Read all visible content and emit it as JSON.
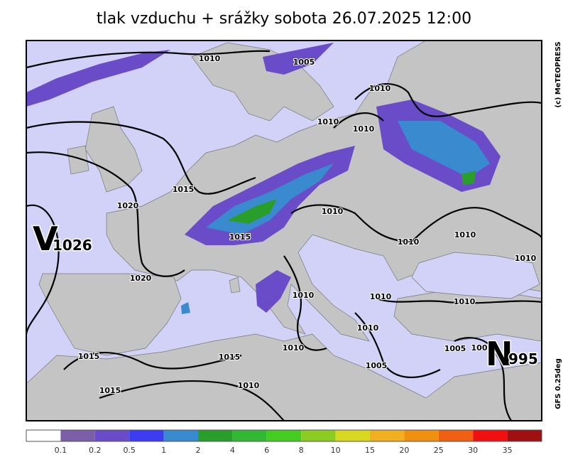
{
  "title": "tlak vzduchu + srážky  sobota 26.07.2025 12:00",
  "credit": "(c) MeTEOPRESS",
  "model": "GFS  0.25deg",
  "centers": [
    {
      "letter": "V",
      "value": "1026"
    },
    {
      "letter": "N",
      "value": "995"
    }
  ],
  "isobar_labels": [
    "1010",
    "1005",
    "1010",
    "1010",
    "1010",
    "1015",
    "1020",
    "1010",
    "1015",
    "1010",
    "1010",
    "1010",
    "1020",
    "1010",
    "1010",
    "1010",
    "1010",
    "1010",
    "1005",
    "100",
    "1015",
    "1015",
    "1005",
    "1015",
    "1010"
  ],
  "legend": {
    "thresholds": [
      0.1,
      0.2,
      0.5,
      1,
      2,
      4,
      6,
      8,
      10,
      15,
      20,
      25,
      30,
      35
    ],
    "colors": [
      "#ffffff",
      "#7b5ea7",
      "#6a4cc8",
      "#3c3cf0",
      "#3a8ad0",
      "#2a9e2a",
      "#33b833",
      "#44cc22",
      "#8ccc22",
      "#d8d820",
      "#f0b020",
      "#f09010",
      "#f06010",
      "#f01010",
      "#a01010"
    ]
  }
}
